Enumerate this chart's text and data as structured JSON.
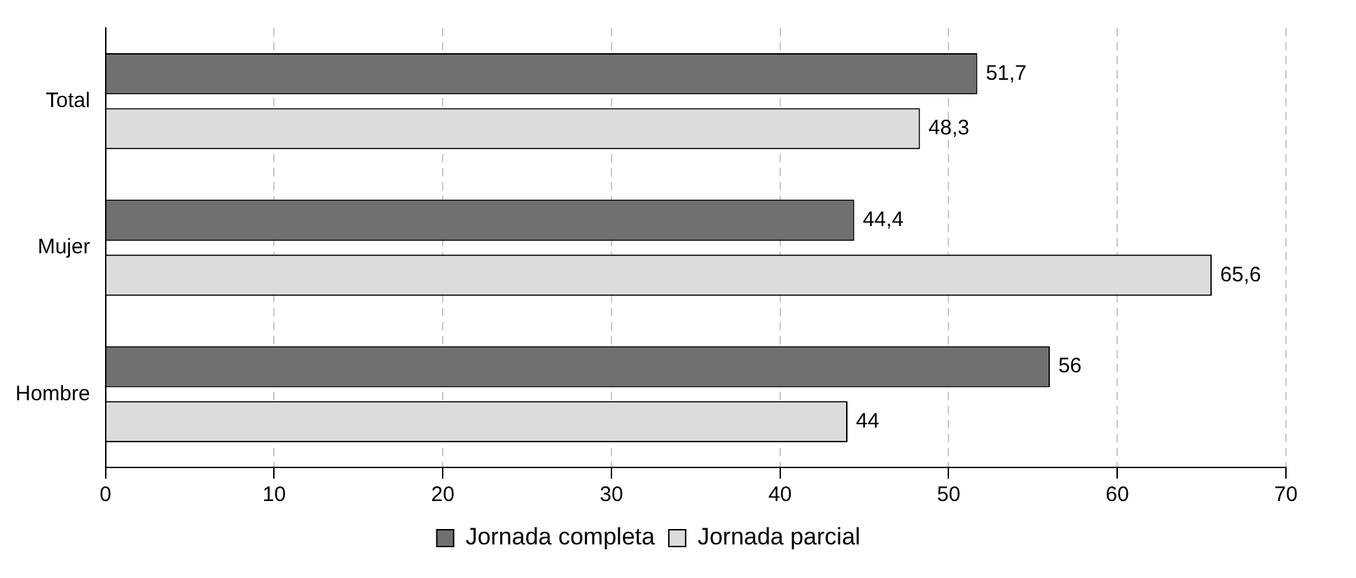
{
  "chart_data": {
    "type": "bar",
    "orientation": "horizontal",
    "categories": [
      "Total",
      "Mujer",
      "Hombre"
    ],
    "series": [
      {
        "name": "Jornada completa",
        "color": "#707070",
        "values": [
          51.7,
          44.4,
          56
        ],
        "value_labels": [
          "51,7",
          "44,4",
          "56"
        ]
      },
      {
        "name": "Jornada parcial",
        "color": "#dcdcdc",
        "values": [
          48.3,
          65.6,
          44
        ],
        "value_labels": [
          "48,3",
          "65,6",
          "44"
        ]
      }
    ],
    "xlim": [
      0,
      70
    ],
    "xticks": [
      0,
      10,
      20,
      30,
      40,
      50,
      60,
      70
    ],
    "grid": "x",
    "legend": "bottom"
  }
}
